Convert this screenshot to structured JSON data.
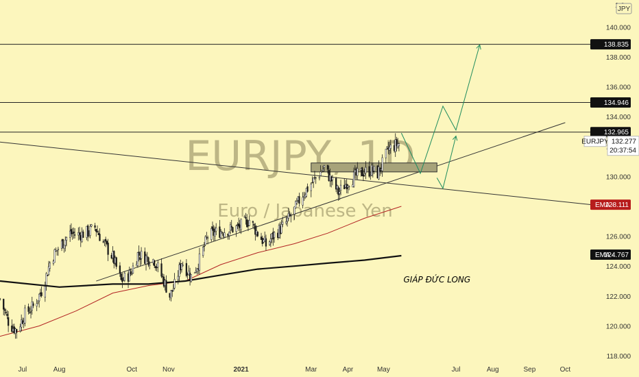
{
  "chart_data": {
    "type": "candlestick",
    "title": "EURJPY, 1D",
    "subtitle": "Euro / Japanese Yen",
    "currency": "JPY",
    "price_axis_label": "1 0",
    "ylim": [
      117.5,
      141.8
    ],
    "y_ticks": [
      118,
      120,
      122,
      124,
      126,
      128,
      130,
      132,
      134,
      136,
      138,
      140
    ],
    "y_tick_labels": [
      "118.000",
      "120.000",
      "122.000",
      "124.000",
      "126.000",
      "128.000",
      "130.000",
      "132.000",
      "134.000",
      "136.000",
      "138.000",
      "140.000"
    ],
    "x_ticks": [
      {
        "date": "2020-07-01",
        "label": "Jul",
        "bold": false
      },
      {
        "date": "2020-08-01",
        "label": "Aug",
        "bold": false
      },
      {
        "date": "2020-10-01",
        "label": "Oct",
        "bold": false
      },
      {
        "date": "2020-11-01",
        "label": "Nov",
        "bold": false
      },
      {
        "date": "2021-01-01",
        "label": "2021",
        "bold": true
      },
      {
        "date": "2021-03-01",
        "label": "Mar",
        "bold": false
      },
      {
        "date": "2021-04-01",
        "label": "Apr",
        "bold": false
      },
      {
        "date": "2021-05-01",
        "label": "May",
        "bold": false
      },
      {
        "date": "2021-07-01",
        "label": "Jul",
        "bold": false
      },
      {
        "date": "2021-08-01",
        "label": "Aug",
        "bold": false
      },
      {
        "date": "2021-09-01",
        "label": "Sep",
        "bold": false
      },
      {
        "date": "2021-10-01",
        "label": "Oct",
        "bold": false
      }
    ],
    "xlim": [
      "2020-06-12",
      "2021-11-05"
    ],
    "grid": false,
    "price_path": [
      [
        "2020-06-12",
        121.8
      ],
      [
        "2020-06-20",
        120.1
      ],
      [
        "2020-06-26",
        119.7
      ],
      [
        "2020-07-03",
        120.8
      ],
      [
        "2020-07-10",
        121.3
      ],
      [
        "2020-07-18",
        122.5
      ],
      [
        "2020-07-25",
        124.5
      ],
      [
        "2020-08-01",
        125.3
      ],
      [
        "2020-08-10",
        126.2
      ],
      [
        "2020-08-18",
        126.1
      ],
      [
        "2020-08-26",
        126.3
      ],
      [
        "2020-08-31",
        126.6
      ],
      [
        "2020-09-07",
        125.6
      ],
      [
        "2020-09-15",
        124.6
      ],
      [
        "2020-09-22",
        123.0
      ],
      [
        "2020-09-30",
        123.5
      ],
      [
        "2020-10-06",
        124.8
      ],
      [
        "2020-10-12",
        124.6
      ],
      [
        "2020-10-20",
        124.4
      ],
      [
        "2020-10-28",
        123.0
      ],
      [
        "2020-11-02",
        122.0
      ],
      [
        "2020-11-06",
        122.7
      ],
      [
        "2020-11-12",
        124.3
      ],
      [
        "2020-11-20",
        123.3
      ],
      [
        "2020-11-26",
        124.2
      ],
      [
        "2020-12-04",
        126.0
      ],
      [
        "2020-12-12",
        126.3
      ],
      [
        "2020-12-20",
        126.4
      ],
      [
        "2020-12-30",
        126.6
      ],
      [
        "2021-01-08",
        127.1
      ],
      [
        "2021-01-15",
        126.2
      ],
      [
        "2021-01-22",
        125.4
      ],
      [
        "2021-01-29",
        126.1
      ],
      [
        "2021-02-06",
        126.7
      ],
      [
        "2021-02-14",
        127.6
      ],
      [
        "2021-02-21",
        128.7
      ],
      [
        "2021-03-01",
        129.5
      ],
      [
        "2021-03-08",
        130.2
      ],
      [
        "2021-03-12",
        130.6
      ],
      [
        "2021-03-19",
        129.6
      ],
      [
        "2021-03-24",
        128.9
      ],
      [
        "2021-03-31",
        129.6
      ],
      [
        "2021-04-07",
        130.0
      ],
      [
        "2021-04-14",
        130.3
      ],
      [
        "2021-04-21",
        130.4
      ],
      [
        "2021-04-26",
        130.2
      ],
      [
        "2021-05-01",
        131.0
      ],
      [
        "2021-05-05",
        131.8
      ],
      [
        "2021-05-11",
        132.1
      ],
      [
        "2021-05-16",
        132.28
      ]
    ],
    "series": [
      {
        "name": "EMA",
        "value_tag": "128.111",
        "color": "#b22222",
        "path": [
          [
            "2020-06-12",
            119.3
          ],
          [
            "2020-07-15",
            120.0
          ],
          [
            "2020-08-15",
            121.0
          ],
          [
            "2020-09-15",
            122.2
          ],
          [
            "2020-10-15",
            122.7
          ],
          [
            "2020-11-15",
            123.0
          ],
          [
            "2020-12-15",
            124.1
          ],
          [
            "2021-01-15",
            124.9
          ],
          [
            "2021-02-15",
            125.5
          ],
          [
            "2021-03-15",
            126.2
          ],
          [
            "2021-04-15",
            127.2
          ],
          [
            "2021-05-16",
            128.0
          ]
        ]
      },
      {
        "name": "EMA",
        "value_tag": "124.767",
        "color": "#111111",
        "path": [
          [
            "2020-06-12",
            123.0
          ],
          [
            "2020-08-01",
            122.6
          ],
          [
            "2020-09-15",
            122.8
          ],
          [
            "2020-10-15",
            122.8
          ],
          [
            "2020-11-15",
            123.0
          ],
          [
            "2020-12-15",
            123.4
          ],
          [
            "2021-01-15",
            123.8
          ],
          [
            "2021-02-15",
            124.0
          ],
          [
            "2021-03-15",
            124.2
          ],
          [
            "2021-04-15",
            124.4
          ],
          [
            "2021-05-16",
            124.7
          ]
        ]
      }
    ],
    "horizontal_levels": [
      138.835,
      134.946,
      132.965
    ],
    "level_tags": [
      "138.835",
      "134.946",
      "132.965"
    ],
    "trendlines": [
      {
        "from": [
          "2020-06-12",
          132.3
        ],
        "to": [
          "2021-11-05",
          128.0
        ]
      },
      {
        "from": [
          "2020-09-01",
          123.0
        ],
        "to": [
          "2021-10-01",
          133.6
        ]
      }
    ],
    "zone": {
      "from": "2021-03-01",
      "to": "2021-06-15",
      "low": 130.3,
      "high": 130.9
    },
    "projection_1": [
      [
        "2021-05-16",
        132.9
      ],
      [
        "2021-06-01",
        130.2
      ],
      [
        "2021-06-20",
        134.7
      ],
      [
        "2021-07-01",
        133.1
      ],
      [
        "2021-07-21",
        138.8
      ]
    ],
    "projection_2": [
      [
        "2021-06-15",
        129.9
      ],
      [
        "2021-06-20",
        129.2
      ],
      [
        "2021-07-01",
        132.7
      ]
    ],
    "symbol_tag": {
      "label": "EURJPY",
      "price": "132.277",
      "countdown": "20:37:54"
    },
    "annotations": [
      {
        "text": "GIÁP ĐỨC LONG",
        "date": "2021-06-15",
        "price": 122.9
      }
    ]
  },
  "colors": {
    "background": "#fcf6bd",
    "candle": "#1c1c1c",
    "ema_fast": "#b22222",
    "ema_slow": "#111111",
    "projection": "#1f8c5e",
    "zone": "#a7a37a"
  }
}
